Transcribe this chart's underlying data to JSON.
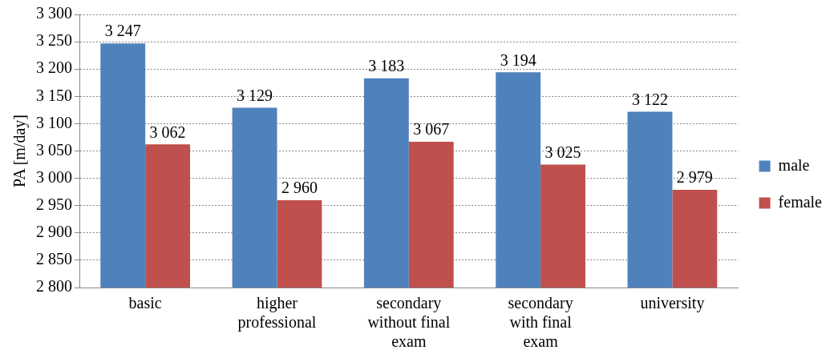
{
  "chart_data": {
    "type": "bar",
    "ylabel": "PA [m/day]",
    "categories": [
      "basic",
      "higher professional",
      "secondary without final exam",
      "secondary with final exam",
      "university"
    ],
    "series": [
      {
        "name": "male",
        "color": "#4f81bd",
        "values": [
          3247,
          3129,
          3183,
          3194,
          3122
        ]
      },
      {
        "name": "female",
        "color": "#c0504d",
        "values": [
          3062,
          2960,
          3067,
          3025,
          2979
        ]
      }
    ],
    "ylim": [
      2800,
      3300
    ],
    "yticks": [
      {
        "value": 2800,
        "label": "2 800"
      },
      {
        "value": 2850,
        "label": "2 850"
      },
      {
        "value": 2900,
        "label": "2 900"
      },
      {
        "value": 2950,
        "label": "2 950"
      },
      {
        "value": 3000,
        "label": "3 000"
      },
      {
        "value": 3050,
        "label": "3 050"
      },
      {
        "value": 3100,
        "label": "3 100"
      },
      {
        "value": 3150,
        "label": "3 150"
      },
      {
        "value": 3200,
        "label": "3 200"
      },
      {
        "value": 3250,
        "label": "3 250"
      },
      {
        "value": 3300,
        "label": "3 300"
      }
    ],
    "grid": "y",
    "legend": "right",
    "data_labels": true
  }
}
